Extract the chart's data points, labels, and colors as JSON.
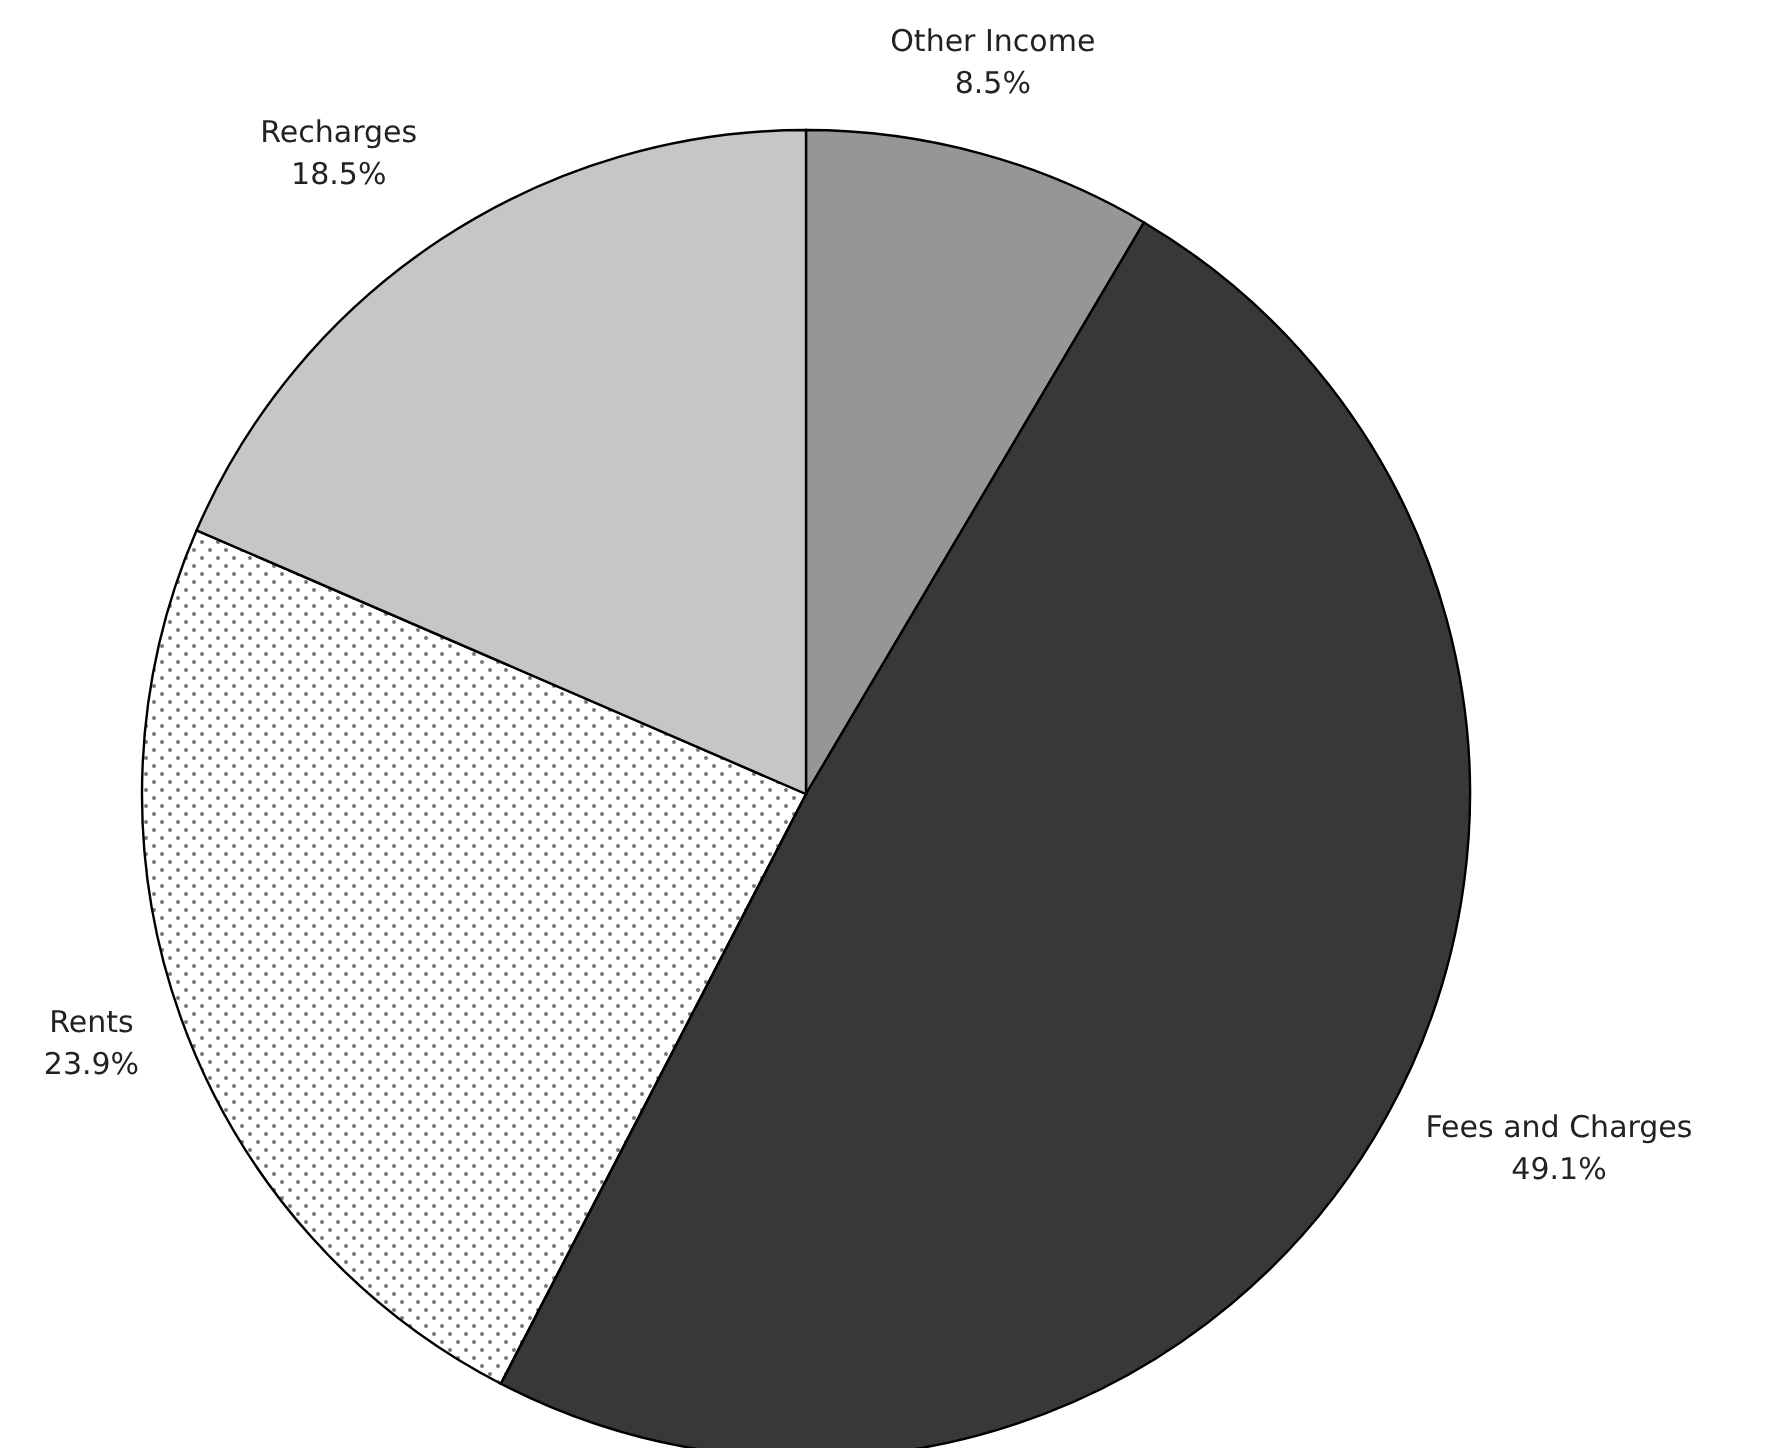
{
  "chart_data": {
    "type": "pie",
    "categories": [
      "Other Income",
      "Fees and Charges",
      "Rents",
      "Recharges"
    ],
    "values": [
      8.5,
      49.1,
      23.9,
      18.5
    ],
    "value_labels": [
      "8.5%",
      "49.1%",
      "23.9%",
      "18.5%"
    ],
    "colors": [
      "#969696",
      "#383838",
      "#ffffff",
      "#c6c6c6"
    ]
  }
}
